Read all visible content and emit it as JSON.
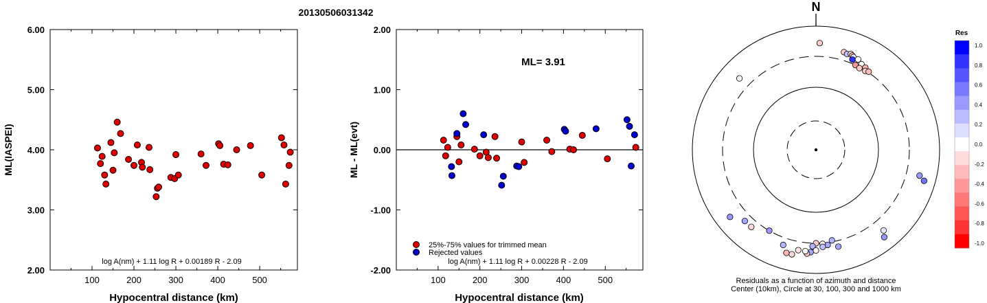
{
  "title": "20130506031342",
  "chart_data": [
    {
      "type": "scatter",
      "xlabel": "Hypocentral distance (km)",
      "ylabel": "ML(IASPEI)",
      "xlim": [
        0,
        590
      ],
      "ylim": [
        2.0,
        6.0
      ],
      "x_ticks": [
        "100",
        "200",
        "300",
        "400",
        "500"
      ],
      "x_tick_values": [
        100,
        200,
        300,
        400,
        500
      ],
      "y_ticks": [
        "2.00",
        "3.00",
        "4.00",
        "5.00",
        "6.00"
      ],
      "y_tick_values": [
        2,
        3,
        4,
        5,
        6
      ],
      "formula": "log A(nm) + 1.11 log R + 0.00189 R - 2.09",
      "series": [
        {
          "color": "#dd0000",
          "points": [
            [
              113,
              4.03
            ],
            [
              120,
              3.77
            ],
            [
              124,
              3.89
            ],
            [
              130,
              3.58
            ],
            [
              133,
              3.43
            ],
            [
              145,
              4.12
            ],
            [
              150,
              3.66
            ],
            [
              153,
              3.95
            ],
            [
              160,
              4.46
            ],
            [
              168,
              4.27
            ],
            [
              187,
              3.84
            ],
            [
              200,
              3.74
            ],
            [
              208,
              4.08
            ],
            [
              218,
              3.79
            ],
            [
              220,
              3.71
            ],
            [
              236,
              4.04
            ],
            [
              238,
              3.67
            ],
            [
              253,
              3.22
            ],
            [
              256,
              3.36
            ],
            [
              259,
              3.38
            ],
            [
              288,
              3.54
            ],
            [
              297,
              3.52
            ],
            [
              300,
              3.92
            ],
            [
              306,
              3.58
            ],
            [
              360,
              3.93
            ],
            [
              372,
              3.74
            ],
            [
              402,
              4.1
            ],
            [
              405,
              4.07
            ],
            [
              414,
              3.76
            ],
            [
              424,
              3.75
            ],
            [
              445,
              4.0
            ],
            [
              478,
              4.07
            ],
            [
              505,
              3.58
            ],
            [
              552,
              4.2
            ],
            [
              558,
              4.08
            ],
            [
              562,
              3.43
            ],
            [
              570,
              3.74
            ],
            [
              573,
              3.96
            ]
          ]
        }
      ]
    },
    {
      "type": "scatter",
      "xlabel": "Hypocentral distance (km)",
      "ylabel": "ML - ML(evt)",
      "xlim": [
        0,
        590
      ],
      "ylim": [
        -2.0,
        2.0
      ],
      "x_ticks": [
        "100",
        "200",
        "300",
        "400",
        "500"
      ],
      "x_tick_values": [
        100,
        200,
        300,
        400,
        500
      ],
      "y_ticks": [
        "-2.00",
        "-1.00",
        "0.00",
        "1.00",
        "2.00"
      ],
      "y_tick_values": [
        -2,
        -1,
        0,
        1,
        2
      ],
      "annotation": "ML= 3.91",
      "formula": "log A(nm) + 1.11 log R + 0.00228 R - 2.09",
      "legend": [
        "25%-75% values for trimmed mean",
        "Rejected values"
      ],
      "series": [
        {
          "name": "25%-75% values for trimmed mean",
          "color": "#dd0000",
          "points": [
            [
              113,
              0.16
            ],
            [
              118,
              -0.1
            ],
            [
              123,
              0.04
            ],
            [
              145,
              0.22
            ],
            [
              150,
              -0.2
            ],
            [
              155,
              0.08
            ],
            [
              187,
              0.01
            ],
            [
              200,
              -0.1
            ],
            [
              215,
              -0.04
            ],
            [
              220,
              -0.13
            ],
            [
              236,
              0.22
            ],
            [
              240,
              -0.14
            ],
            [
              300,
              0.13
            ],
            [
              306,
              -0.21
            ],
            [
              360,
              0.16
            ],
            [
              372,
              -0.03
            ],
            [
              415,
              0.01
            ],
            [
              424,
              0.0
            ],
            [
              445,
              0.24
            ],
            [
              505,
              -0.15
            ],
            [
              573,
              0.04
            ]
          ]
        },
        {
          "name": "Rejected values",
          "color": "#0000cc",
          "points": [
            [
              132,
              -0.28
            ],
            [
              133,
              -0.43
            ],
            [
              145,
              0.27
            ],
            [
              160,
              0.6
            ],
            [
              166,
              0.42
            ],
            [
              209,
              0.25
            ],
            [
              252,
              -0.59
            ],
            [
              256,
              -0.44
            ],
            [
              288,
              -0.27
            ],
            [
              293,
              -0.28
            ],
            [
              402,
              0.34
            ],
            [
              405,
              0.31
            ],
            [
              478,
              0.35
            ],
            [
              552,
              0.5
            ],
            [
              558,
              0.39
            ],
            [
              562,
              -0.27
            ],
            [
              570,
              0.25
            ]
          ]
        }
      ]
    },
    {
      "type": "scatter",
      "subtype": "polar residual map",
      "north_label": "N",
      "caption_line1": "Residuals as a function of azimuth and distance",
      "caption_line2": "Center (10km), Circle at 30, 100, 300 and 1000 km",
      "colorbar_title": "Res",
      "colorbar_ticks": [
        "1.0",
        "0.8",
        "0.6",
        "0.4",
        "0.2",
        "0.0",
        "-0.2",
        "-0.4",
        "-0.6",
        "-0.8",
        "-1.0"
      ],
      "colorbar_values": [
        1.0,
        0.8,
        0.6,
        0.4,
        0.2,
        0.0,
        -0.2,
        -0.4,
        -0.6,
        -0.8,
        -1.0
      ],
      "colorbar_colors": [
        "#0000ff",
        "#3333ff",
        "#5555ff",
        "#7777ff",
        "#9999ff",
        "#bbbbff",
        "#ddddff",
        "#ffffff",
        "#ffdddd",
        "#ffbbbb",
        "#ff9999",
        "#ff7777",
        "#ff5555",
        "#ff3333",
        "#ff0000"
      ],
      "stations_note": "azimuth in degrees clockwise from north, distance in km (log radial scale), residual in magnitude units",
      "stations": [
        {
          "az": 2,
          "dist": 510,
          "res": -0.2
        },
        {
          "az": 313,
          "dist": 470,
          "res": 0.0
        },
        {
          "az": 16,
          "dist": 415,
          "res": -0.2
        },
        {
          "az": 18,
          "dist": 400,
          "res": 0.25
        },
        {
          "az": 20,
          "dist": 420,
          "res": -0.05
        },
        {
          "az": 21,
          "dist": 405,
          "res": -0.3
        },
        {
          "az": 22,
          "dist": 390,
          "res": 0.1
        },
        {
          "az": 22,
          "dist": 350,
          "res": 0.8
        },
        {
          "az": 25,
          "dist": 385,
          "res": 0.0
        },
        {
          "az": 25,
          "dist": 300,
          "res": -0.4
        },
        {
          "az": 28,
          "dist": 345,
          "res": 0.0
        },
        {
          "az": 28,
          "dist": 290,
          "res": -0.2
        },
        {
          "az": 31,
          "dist": 330,
          "res": -0.3
        },
        {
          "az": 32,
          "dist": 295,
          "res": -0.2
        },
        {
          "az": 34,
          "dist": 310,
          "res": -0.25
        },
        {
          "az": 104,
          "dist": 510,
          "res": 0.4
        },
        {
          "az": 106,
          "dist": 640,
          "res": 0.55
        },
        {
          "az": 140,
          "dist": 480,
          "res": 0.1
        },
        {
          "az": 142,
          "dist": 600,
          "res": 0.4
        },
        {
          "az": 170,
          "dist": 285,
          "res": 0.3
        },
        {
          "az": 167,
          "dist": 380,
          "res": 0.35
        },
        {
          "az": 173,
          "dist": 330,
          "res": 0.35
        },
        {
          "az": 176,
          "dist": 310,
          "res": -0.1
        },
        {
          "az": 176,
          "dist": 350,
          "res": 0.25
        },
        {
          "az": 180,
          "dist": 300,
          "res": -0.2
        },
        {
          "az": 182,
          "dist": 340,
          "res": 0.3
        },
        {
          "az": 180,
          "dist": 400,
          "res": -0.05
        },
        {
          "az": 183,
          "dist": 430,
          "res": 0.35
        },
        {
          "az": 185,
          "dist": 460,
          "res": -0.25
        },
        {
          "az": 186,
          "dist": 420,
          "res": 0.0
        },
        {
          "az": 190,
          "dist": 420,
          "res": -0.1
        },
        {
          "az": 193,
          "dist": 520,
          "res": -0.15
        },
        {
          "az": 196,
          "dist": 520,
          "res": -0.3
        },
        {
          "az": 199,
          "dist": 400,
          "res": 0.3
        },
        {
          "az": 210,
          "dist": 300,
          "res": 0.4
        },
        {
          "az": 220,
          "dist": 400,
          "res": -0.15
        },
        {
          "az": 225,
          "dist": 400,
          "res": 0.35
        },
        {
          "az": 232,
          "dist": 560,
          "res": 0.4
        }
      ]
    }
  ]
}
